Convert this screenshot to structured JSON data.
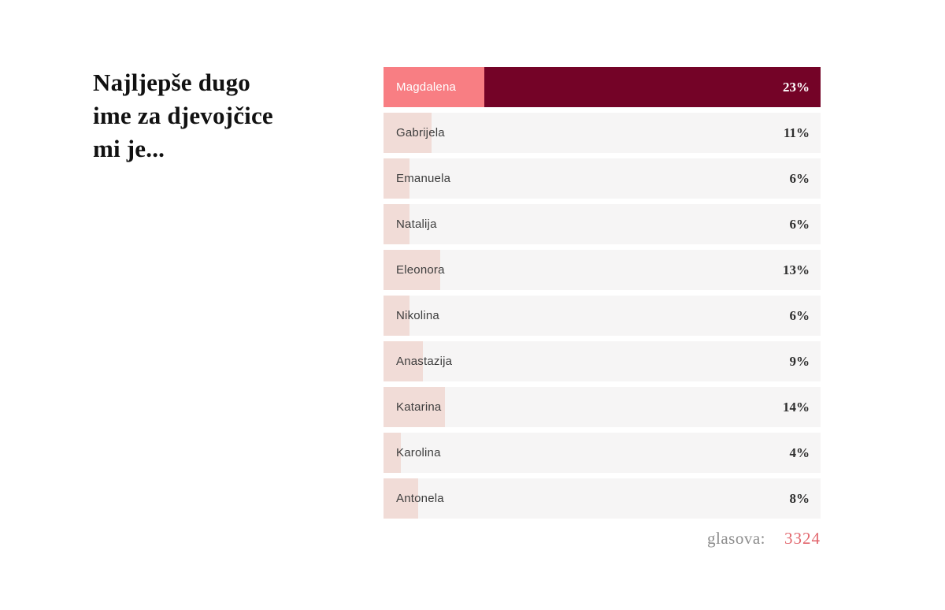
{
  "title": "Najljepše dugo\nime za djevojčice\nmi je...",
  "poll": {
    "options": [
      {
        "label": "Magdalena",
        "percent": 23,
        "percent_label": "23%",
        "highlighted": true
      },
      {
        "label": "Gabrijela",
        "percent": 11,
        "percent_label": "11%",
        "highlighted": false
      },
      {
        "label": "Emanuela",
        "percent": 6,
        "percent_label": "6%",
        "highlighted": false
      },
      {
        "label": "Natalija",
        "percent": 6,
        "percent_label": "6%",
        "highlighted": false
      },
      {
        "label": "Eleonora",
        "percent": 13,
        "percent_label": "13%",
        "highlighted": false
      },
      {
        "label": "Nikolina",
        "percent": 6,
        "percent_label": "6%",
        "highlighted": false
      },
      {
        "label": "Anastazija",
        "percent": 9,
        "percent_label": "9%",
        "highlighted": false
      },
      {
        "label": "Katarina",
        "percent": 14,
        "percent_label": "14%",
        "highlighted": false
      },
      {
        "label": "Karolina",
        "percent": 4,
        "percent_label": "4%",
        "highlighted": false
      },
      {
        "label": "Antonela",
        "percent": 8,
        "percent_label": "8%",
        "highlighted": false
      }
    ]
  },
  "footer": {
    "label": "glasova:",
    "count": "3324"
  },
  "colors": {
    "salmon": "#f87e83",
    "maroon": "#740327",
    "bar_pink": "#f1dcd7",
    "row_bg": "#f6f5f5",
    "votes_count": "#e2666d"
  },
  "chart_data": {
    "type": "bar",
    "orientation": "horizontal",
    "title": "Najljepše dugo ime za djevojčice mi je...",
    "categories": [
      "Magdalena",
      "Gabrijela",
      "Emanuela",
      "Natalija",
      "Eleonora",
      "Nikolina",
      "Anastazija",
      "Katarina",
      "Karolina",
      "Antonela"
    ],
    "values": [
      23,
      11,
      6,
      6,
      13,
      6,
      9,
      14,
      4,
      8
    ],
    "unit": "%",
    "xlim": [
      0,
      100
    ],
    "highlighted_category": "Magdalena",
    "total_votes_label": "glasova:",
    "total_votes": 3324
  }
}
